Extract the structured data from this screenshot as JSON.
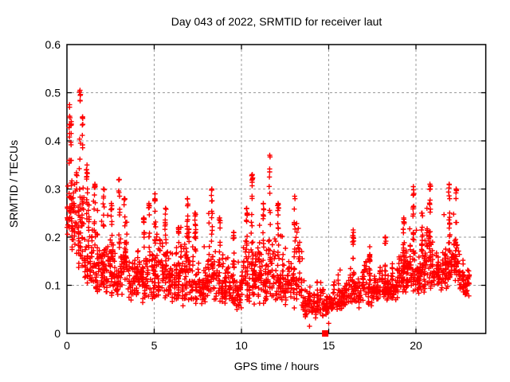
{
  "figure": {
    "title": "Day 043 of 2022, SRMTID for receiver laut",
    "xlabel": "GPS time / hours",
    "ylabel": "SRMTID / TECUs"
  },
  "style": {
    "background": "#ffffff",
    "marker_color": "#ff0000",
    "grid_color": "#9a9a9a",
    "border_color": "#000000",
    "text_color": "#000000"
  },
  "chart_data": {
    "type": "scatter",
    "title": "Day 043 of 2022, SRMTID for receiver laut",
    "xlabel": "GPS time / hours",
    "ylabel": "SRMTID / TECUs",
    "xlim": [
      0,
      24
    ],
    "ylim": [
      0,
      0.6
    ],
    "x_ticks": [
      0,
      5,
      10,
      15,
      20
    ],
    "y_ticks": [
      0,
      0.1,
      0.2,
      0.3,
      0.4,
      0.5,
      0.6
    ],
    "grid": true,
    "grid_style": "dashed",
    "marker": "plus",
    "marker_size_px": 7,
    "series_name": "SRMTID",
    "x_data_range": [
      0.0,
      23.1
    ],
    "envelope_bins_format": [
      "t_start_h",
      "t_end_h",
      "y_low",
      "y_high",
      "y_median",
      "approx_point_count"
    ],
    "envelope_bins": [
      [
        0.0,
        0.5,
        0.15,
        0.48,
        0.27,
        55
      ],
      [
        0.5,
        1.0,
        0.1,
        0.5,
        0.22,
        50
      ],
      [
        1.0,
        1.5,
        0.08,
        0.35,
        0.18,
        50
      ],
      [
        1.5,
        2.0,
        0.07,
        0.31,
        0.16,
        45
      ],
      [
        2.0,
        2.5,
        0.07,
        0.3,
        0.17,
        50
      ],
      [
        2.5,
        3.0,
        0.06,
        0.26,
        0.15,
        45
      ],
      [
        3.0,
        3.5,
        0.07,
        0.32,
        0.16,
        50
      ],
      [
        3.5,
        4.0,
        0.06,
        0.22,
        0.13,
        45
      ],
      [
        4.0,
        4.5,
        0.06,
        0.24,
        0.13,
        45
      ],
      [
        4.5,
        5.0,
        0.06,
        0.27,
        0.15,
        48
      ],
      [
        5.0,
        5.5,
        0.06,
        0.29,
        0.15,
        48
      ],
      [
        5.5,
        6.0,
        0.05,
        0.26,
        0.13,
        45
      ],
      [
        6.0,
        6.5,
        0.05,
        0.22,
        0.12,
        45
      ],
      [
        6.5,
        7.0,
        0.05,
        0.28,
        0.13,
        48
      ],
      [
        7.0,
        7.5,
        0.05,
        0.25,
        0.13,
        45
      ],
      [
        7.5,
        8.0,
        0.05,
        0.21,
        0.12,
        45
      ],
      [
        8.0,
        8.5,
        0.06,
        0.3,
        0.15,
        48
      ],
      [
        8.5,
        9.0,
        0.05,
        0.24,
        0.13,
        45
      ],
      [
        9.0,
        9.5,
        0.05,
        0.22,
        0.12,
        45
      ],
      [
        9.5,
        10.0,
        0.04,
        0.2,
        0.11,
        45
      ],
      [
        10.0,
        10.5,
        0.05,
        0.26,
        0.12,
        45
      ],
      [
        10.5,
        11.0,
        0.05,
        0.33,
        0.13,
        48
      ],
      [
        11.0,
        11.5,
        0.05,
        0.27,
        0.14,
        48
      ],
      [
        11.5,
        12.0,
        0.05,
        0.37,
        0.15,
        50
      ],
      [
        12.0,
        12.5,
        0.05,
        0.27,
        0.13,
        48
      ],
      [
        12.5,
        13.0,
        0.05,
        0.22,
        0.12,
        45
      ],
      [
        13.0,
        13.5,
        0.04,
        0.28,
        0.11,
        45
      ],
      [
        13.5,
        14.0,
        0.03,
        0.15,
        0.09,
        42
      ],
      [
        14.0,
        14.5,
        0.03,
        0.13,
        0.08,
        42
      ],
      [
        14.5,
        15.0,
        0.03,
        0.12,
        0.07,
        42
      ],
      [
        15.0,
        15.5,
        0.04,
        0.13,
        0.08,
        42
      ],
      [
        15.5,
        16.0,
        0.04,
        0.15,
        0.09,
        42
      ],
      [
        16.0,
        16.5,
        0.05,
        0.21,
        0.1,
        45
      ],
      [
        16.5,
        17.0,
        0.05,
        0.17,
        0.1,
        45
      ],
      [
        17.0,
        17.5,
        0.05,
        0.18,
        0.11,
        45
      ],
      [
        17.5,
        18.0,
        0.06,
        0.16,
        0.11,
        45
      ],
      [
        18.0,
        18.5,
        0.06,
        0.2,
        0.12,
        45
      ],
      [
        18.5,
        19.0,
        0.06,
        0.18,
        0.12,
        45
      ],
      [
        19.0,
        19.5,
        0.07,
        0.24,
        0.13,
        48
      ],
      [
        19.5,
        20.0,
        0.07,
        0.3,
        0.14,
        48
      ],
      [
        20.0,
        20.5,
        0.07,
        0.25,
        0.14,
        48
      ],
      [
        20.5,
        21.0,
        0.07,
        0.31,
        0.14,
        48
      ],
      [
        21.0,
        21.5,
        0.08,
        0.22,
        0.14,
        45
      ],
      [
        21.5,
        22.0,
        0.08,
        0.31,
        0.15,
        48
      ],
      [
        22.0,
        22.5,
        0.08,
        0.3,
        0.14,
        48
      ],
      [
        22.5,
        23.1,
        0.07,
        0.21,
        0.12,
        50
      ]
    ],
    "spike_columns_format": [
      "t_h",
      "y_top"
    ],
    "spike_columns": [
      [
        0.15,
        0.475
      ],
      [
        0.25,
        0.44
      ],
      [
        0.75,
        0.505
      ],
      [
        0.9,
        0.45
      ],
      [
        1.15,
        0.35
      ],
      [
        1.6,
        0.31
      ],
      [
        2.1,
        0.3
      ],
      [
        2.55,
        0.27
      ],
      [
        3.0,
        0.32
      ],
      [
        3.3,
        0.28
      ],
      [
        4.4,
        0.24
      ],
      [
        4.7,
        0.27
      ],
      [
        5.05,
        0.29
      ],
      [
        5.65,
        0.26
      ],
      [
        6.4,
        0.22
      ],
      [
        6.9,
        0.28
      ],
      [
        7.35,
        0.25
      ],
      [
        8.3,
        0.3
      ],
      [
        8.75,
        0.24
      ],
      [
        9.55,
        0.21
      ],
      [
        10.3,
        0.26
      ],
      [
        10.62,
        0.33
      ],
      [
        11.25,
        0.27
      ],
      [
        11.62,
        0.37
      ],
      [
        12.1,
        0.27
      ],
      [
        13.05,
        0.285
      ],
      [
        16.4,
        0.215
      ],
      [
        17.35,
        0.18
      ],
      [
        18.25,
        0.2
      ],
      [
        19.3,
        0.24
      ],
      [
        19.85,
        0.305
      ],
      [
        20.35,
        0.25
      ],
      [
        20.8,
        0.31
      ],
      [
        21.9,
        0.31
      ],
      [
        22.3,
        0.3
      ]
    ],
    "isolated_low_points": [
      [
        13.9,
        0.015
      ],
      [
        15.0,
        0.021
      ]
    ],
    "square_marker_points": [
      [
        14.8,
        0.0
      ]
    ]
  }
}
